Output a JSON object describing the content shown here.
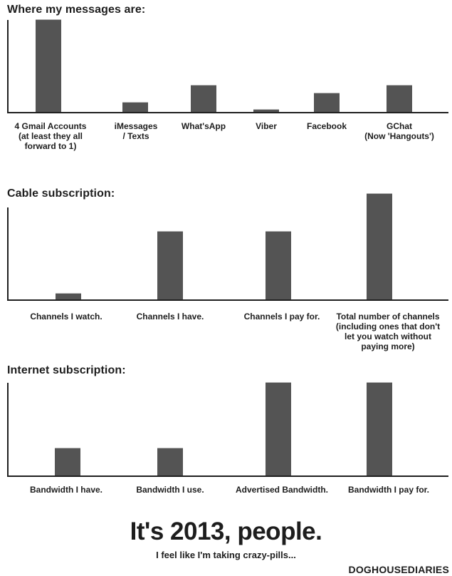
{
  "page": {
    "footer": {
      "title": "It's 2013, people.",
      "subtitle": "I feel like I'm taking crazy-pills...",
      "credit": "DOGHOUSEDIARIES"
    }
  },
  "colors": {
    "background": "#ffffff",
    "bar_fill": "#545454",
    "axis": "#1f1f1f",
    "text": "#1d1d1d"
  },
  "chart_data": [
    {
      "type": "bar",
      "title": "Where my messages are:",
      "categories": [
        "4 Gmail Accounts\n(at least they all\nforward to 1)",
        "iMessages\n/ Texts",
        "What'sApp",
        "Viber",
        "Facebook",
        "GChat\n(Now 'Hangouts')"
      ],
      "values": [
        100,
        10,
        29,
        2,
        20,
        29
      ],
      "xlabel": "",
      "ylabel": "",
      "ylim": [
        0,
        100
      ],
      "y_axis_ticks": "none (unlabeled relative scale; values are % of tallest bar)",
      "grid": false,
      "legend": false
    },
    {
      "type": "bar",
      "title": "Cable subscription:",
      "categories": [
        "Channels I watch.",
        "Channels I have.",
        "Channels I pay for.",
        "Total number of channels\n(including ones that don't\nlet you watch without\npaying more)"
      ],
      "values": [
        6,
        74,
        74,
        115
      ],
      "xlabel": "",
      "ylabel": "",
      "ylim": [
        0,
        100
      ],
      "y_axis_ticks": "none (unlabeled relative scale; last bar overshoots the top of the y-axis)",
      "grid": false,
      "legend": false
    },
    {
      "type": "bar",
      "title": "Internet subscription:",
      "categories": [
        "Bandwidth I have.",
        "Bandwidth I use.",
        "Advertised Bandwidth.",
        "Bandwidth I pay for."
      ],
      "values": [
        29,
        29,
        100,
        100
      ],
      "xlabel": "",
      "ylabel": "",
      "ylim": [
        0,
        100
      ],
      "y_axis_ticks": "none (unlabeled relative scale)",
      "grid": false,
      "legend": false
    }
  ]
}
